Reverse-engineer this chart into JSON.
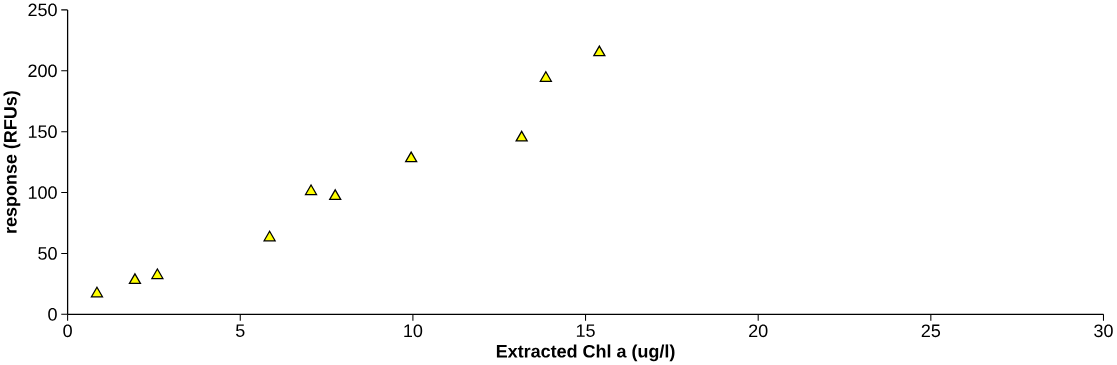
{
  "chart_data": {
    "type": "scatter",
    "xlabel": "Extracted Chl a (ug/l)",
    "ylabel": "response (RFUs)",
    "x": [
      0.85,
      1.95,
      2.6,
      5.85,
      7.05,
      7.75,
      9.95,
      13.15,
      13.85,
      15.4
    ],
    "values": [
      17,
      28,
      32,
      63,
      101,
      97,
      128,
      145,
      194,
      215
    ],
    "color": "#ffff00",
    "marker": "triangle",
    "xlim": [
      0,
      30
    ],
    "xticks": [
      0,
      5,
      10,
      15,
      20,
      25,
      30
    ],
    "ylim": [
      0,
      250
    ],
    "yticks": [
      0,
      50,
      100,
      150,
      200,
      250
    ]
  }
}
